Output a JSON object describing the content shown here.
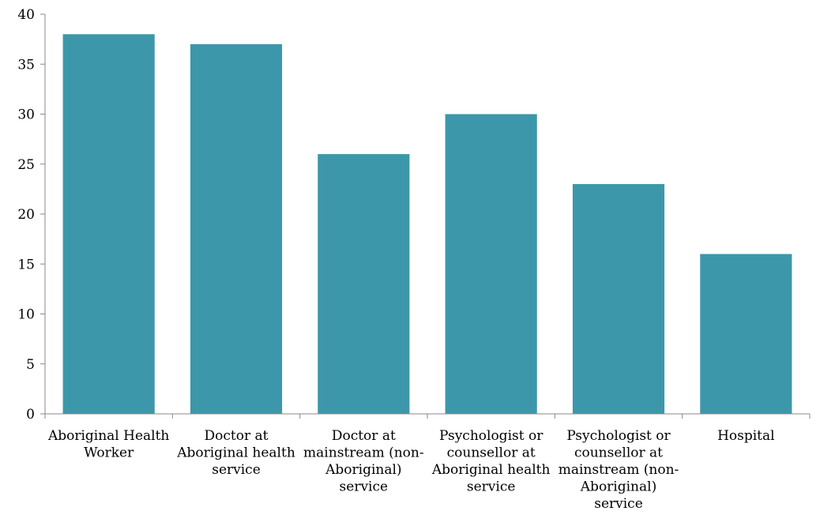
{
  "chart_data": {
    "type": "bar",
    "title": "",
    "xlabel": "",
    "ylabel": "",
    "ylim": [
      0,
      40
    ],
    "yticks": [
      0,
      5,
      10,
      15,
      20,
      25,
      30,
      35,
      40
    ],
    "grid": false,
    "legend": "none",
    "bar_color": "#3d97aa",
    "axis_color": "#888888",
    "categories": [
      [
        "Aboriginal Health",
        "Worker"
      ],
      [
        "Doctor at",
        "Aboriginal health",
        "service"
      ],
      [
        "Doctor at",
        "mainstream (non-",
        "Aboriginal)",
        "service"
      ],
      [
        "Psychologist or",
        "counsellor at",
        "Aboriginal health",
        "service"
      ],
      [
        "Psychologist or",
        "counsellor at",
        "mainstream (non-",
        "Aboriginal)",
        "service"
      ],
      [
        "Hospital"
      ]
    ],
    "values": [
      38,
      37,
      26,
      30,
      23,
      16
    ]
  }
}
